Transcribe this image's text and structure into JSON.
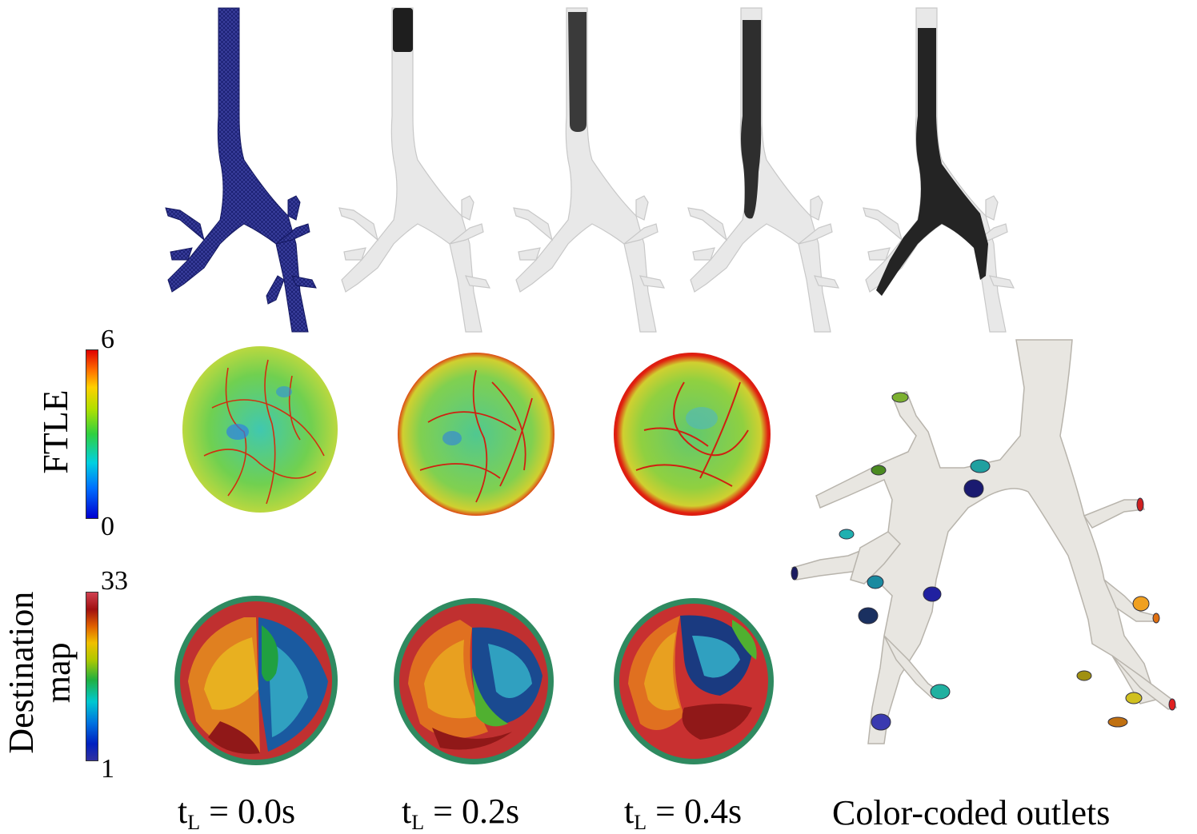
{
  "colorbars": {
    "ftle": {
      "label": "FTLE",
      "max": "6",
      "min": "0"
    },
    "destination": {
      "label_line1": "Destination",
      "label_line2": "map",
      "max": "33",
      "min": "1"
    }
  },
  "times": [
    {
      "base": "t",
      "sub": "L",
      "value": " = 0.0s"
    },
    {
      "base": "t",
      "sub": "L",
      "value": " = 0.2s"
    },
    {
      "base": "t",
      "sub": "L",
      "value": " = 0.4s"
    }
  ],
  "outlets_caption": "Color-coded outlets",
  "colors": {
    "mesh": "#2a2f8f",
    "airway": "#e6e6e6",
    "particles": "#1e1e1e",
    "outlet_model": "#e8e6e1"
  }
}
